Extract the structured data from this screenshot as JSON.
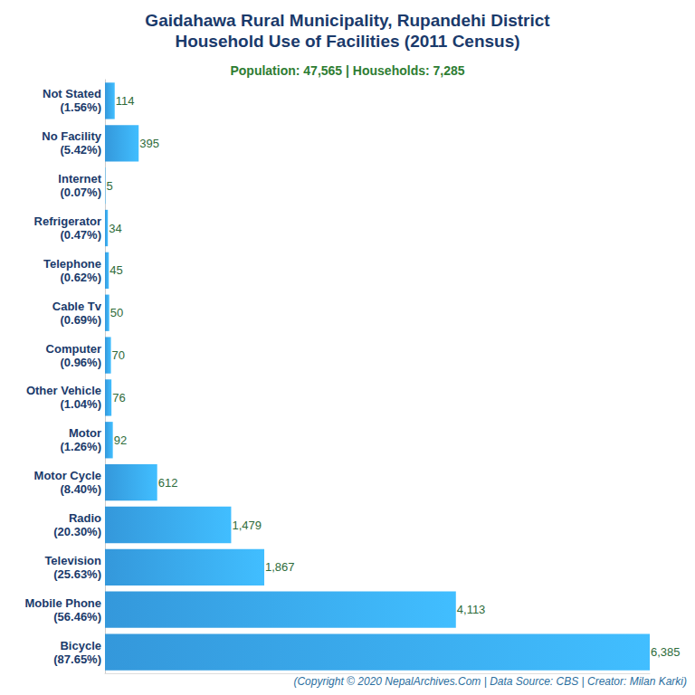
{
  "chart_data": {
    "type": "bar",
    "orientation": "horizontal",
    "title": "Gaidahawa Rural Municipality, Rupandehi District\nHousehold Use of Facilities (2011 Census)",
    "subtitle": "Population: 47,565 | Households: 7,285",
    "annotation": "(Copyright © 2020 NepalArchives.Com | Data Source: CBS | Creator: Milan Karki)",
    "categories": [
      "Not Stated\n(1.56%)",
      "No Facility\n(5.42%)",
      "Internet\n(0.07%)",
      "Refrigerator\n(0.47%)",
      "Telephone\n(0.62%)",
      "Cable Tv\n(0.69%)",
      "Computer\n(0.96%)",
      "Other Vehicle\n(1.04%)",
      "Motor\n(1.26%)",
      "Motor Cycle\n(8.40%)",
      "Radio\n(20.30%)",
      "Television\n(25.63%)",
      "Mobile Phone\n(56.46%)",
      "Bicycle\n(87.65%)"
    ],
    "values": [
      114,
      395,
      5,
      34,
      45,
      50,
      70,
      76,
      92,
      612,
      1479,
      1867,
      4113,
      6385
    ],
    "value_labels": [
      "114",
      "395",
      "5",
      "34",
      "45",
      "50",
      "70",
      "76",
      "92",
      "612",
      "1,479",
      "1,867",
      "4,113",
      "6,385"
    ],
    "data_labels": true,
    "color": "#3498db",
    "xlim": [
      0,
      6385
    ],
    "grid": false,
    "tick_labels": "y"
  }
}
